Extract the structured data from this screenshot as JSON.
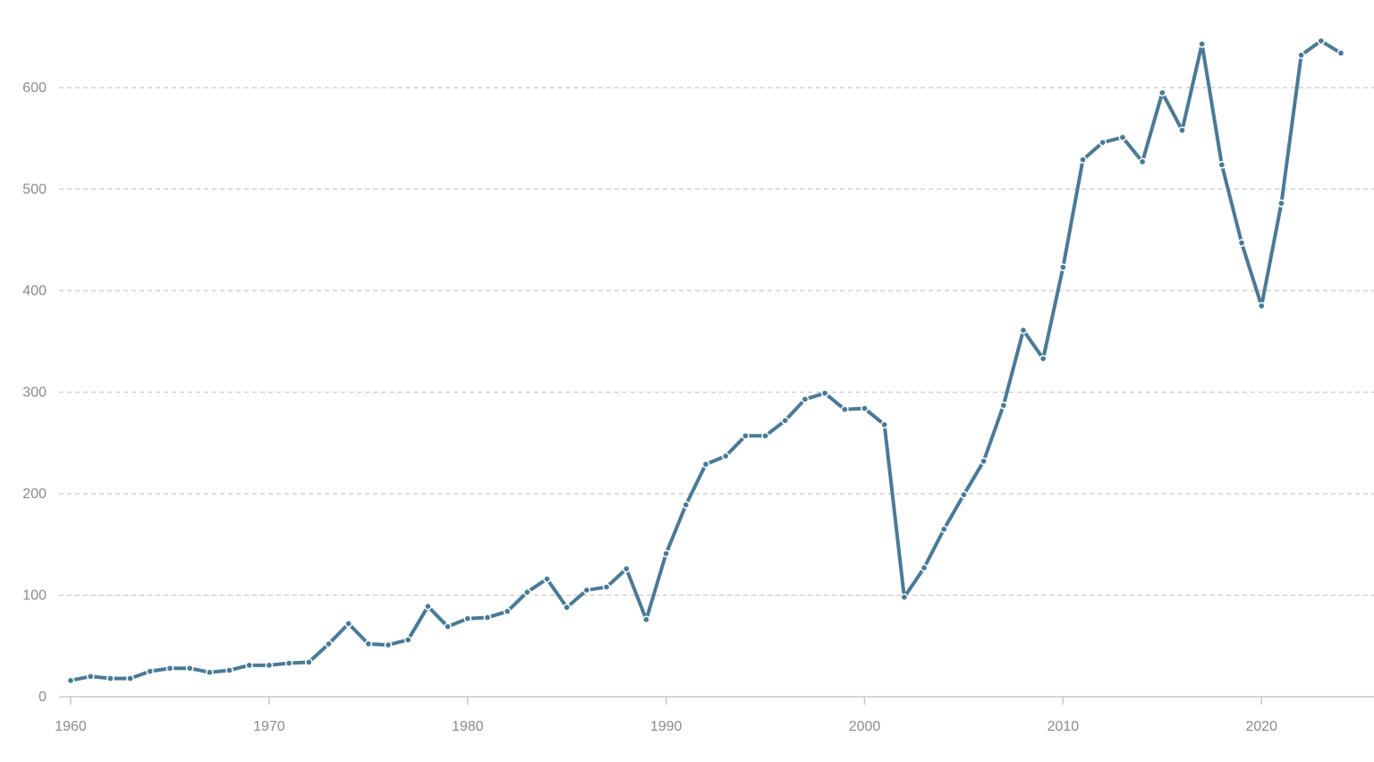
{
  "colors": {
    "series": "#4a7a96"
  },
  "chart_data": {
    "type": "line",
    "xlim": [
      1960,
      2024
    ],
    "ylim": [
      0,
      650
    ],
    "grid": true,
    "y_ticks": [
      0,
      100,
      200,
      300,
      400,
      500,
      600
    ],
    "x_ticks": [
      1960,
      1970,
      1980,
      1990,
      2000,
      2010,
      2020
    ],
    "x": [
      1960,
      1961,
      1962,
      1963,
      1964,
      1965,
      1966,
      1967,
      1968,
      1969,
      1970,
      1971,
      1972,
      1973,
      1974,
      1975,
      1976,
      1977,
      1978,
      1979,
      1980,
      1981,
      1982,
      1983,
      1984,
      1985,
      1986,
      1987,
      1988,
      1989,
      1990,
      1991,
      1992,
      1993,
      1994,
      1995,
      1996,
      1997,
      1998,
      1999,
      2000,
      2001,
      2002,
      2003,
      2004,
      2005,
      2006,
      2007,
      2008,
      2009,
      2010,
      2011,
      2012,
      2013,
      2014,
      2015,
      2016,
      2017,
      2018,
      2019,
      2020,
      2021,
      2022,
      2023,
      2024
    ],
    "series": [
      {
        "values": [
          16,
          20,
          18,
          18,
          25,
          28,
          28,
          24,
          26,
          31,
          31,
          33,
          34,
          52,
          72,
          52,
          51,
          56,
          89,
          69,
          77,
          78,
          84,
          103,
          116,
          88,
          105,
          108,
          126,
          76,
          141,
          189,
          229,
          237,
          257,
          257,
          272,
          293,
          299,
          283,
          284,
          268,
          98,
          127,
          165,
          199,
          232,
          287,
          361,
          333,
          423,
          529,
          546,
          551,
          527,
          595,
          558,
          643,
          524,
          447,
          385,
          486,
          632,
          646,
          634
        ]
      }
    ]
  }
}
